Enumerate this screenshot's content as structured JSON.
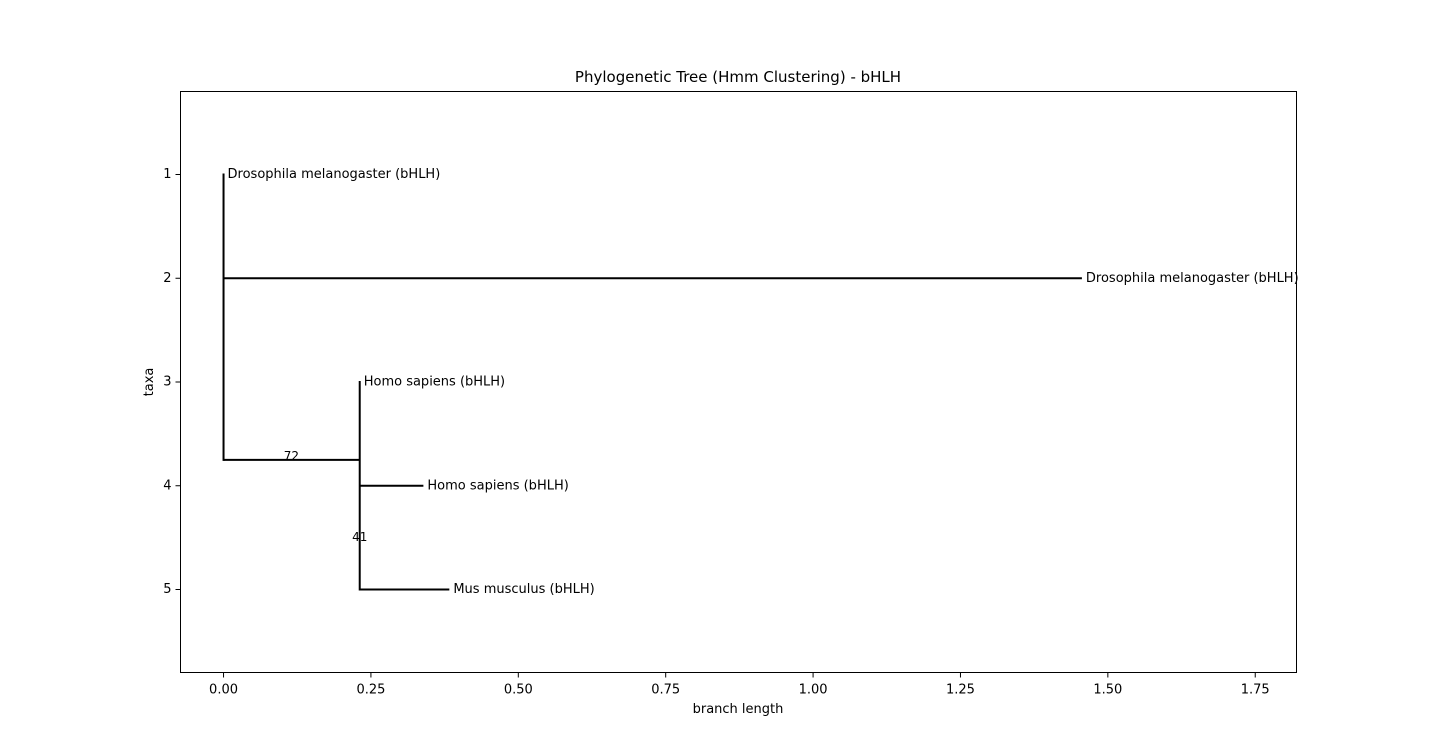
{
  "chart_data": {
    "type": "tree",
    "title": "Phylogenetic Tree (Hmm Clustering) - bHLH",
    "xlabel": "branch length",
    "ylabel": "taxa",
    "xlim": [
      -0.073,
      1.82
    ],
    "ylim": [
      5.8,
      0.2
    ],
    "xticks": [
      0.0,
      0.25,
      0.5,
      0.75,
      1.0,
      1.25,
      1.5,
      1.75
    ],
    "xtick_labels": [
      "0.00",
      "0.25",
      "0.50",
      "0.75",
      "1.00",
      "1.25",
      "1.50",
      "1.75"
    ],
    "yticks": [
      1,
      2,
      3,
      4,
      5
    ],
    "ytick_labels": [
      "1",
      "2",
      "3",
      "4",
      "5"
    ],
    "grid": false,
    "leaves": [
      {
        "label": "Drosophila melanogaster (bHLH)",
        "x": 0.0,
        "y": 1
      },
      {
        "label": "Drosophila melanogaster (bHLH)",
        "x": 1.456,
        "y": 2
      },
      {
        "label": "Homo sapiens (bHLH)",
        "x": 0.231,
        "y": 3
      },
      {
        "label": "Homo sapiens (bHLH)",
        "x": 0.339,
        "y": 4
      },
      {
        "label": "Mus musculus (bHLH)",
        "x": 0.383,
        "y": 5
      }
    ],
    "clades": [
      {
        "x": 0.0,
        "y_min": 1,
        "y_max": 3.75
      },
      {
        "x": 0.231,
        "y_min": 3,
        "y_max": 5
      }
    ],
    "branches": [
      {
        "x1": 0.0,
        "x2": 1.456,
        "y": 2
      },
      {
        "x1": 0.0,
        "x2": 0.231,
        "y": 3.75
      },
      {
        "x1": 0.231,
        "x2": 0.339,
        "y": 4
      },
      {
        "x1": 0.231,
        "x2": 0.383,
        "y": 5
      }
    ],
    "support_labels": [
      {
        "text": "72",
        "x": 0.115,
        "y": 3.72
      },
      {
        "text": "41",
        "x": 0.231,
        "y": 4.5
      }
    ]
  }
}
